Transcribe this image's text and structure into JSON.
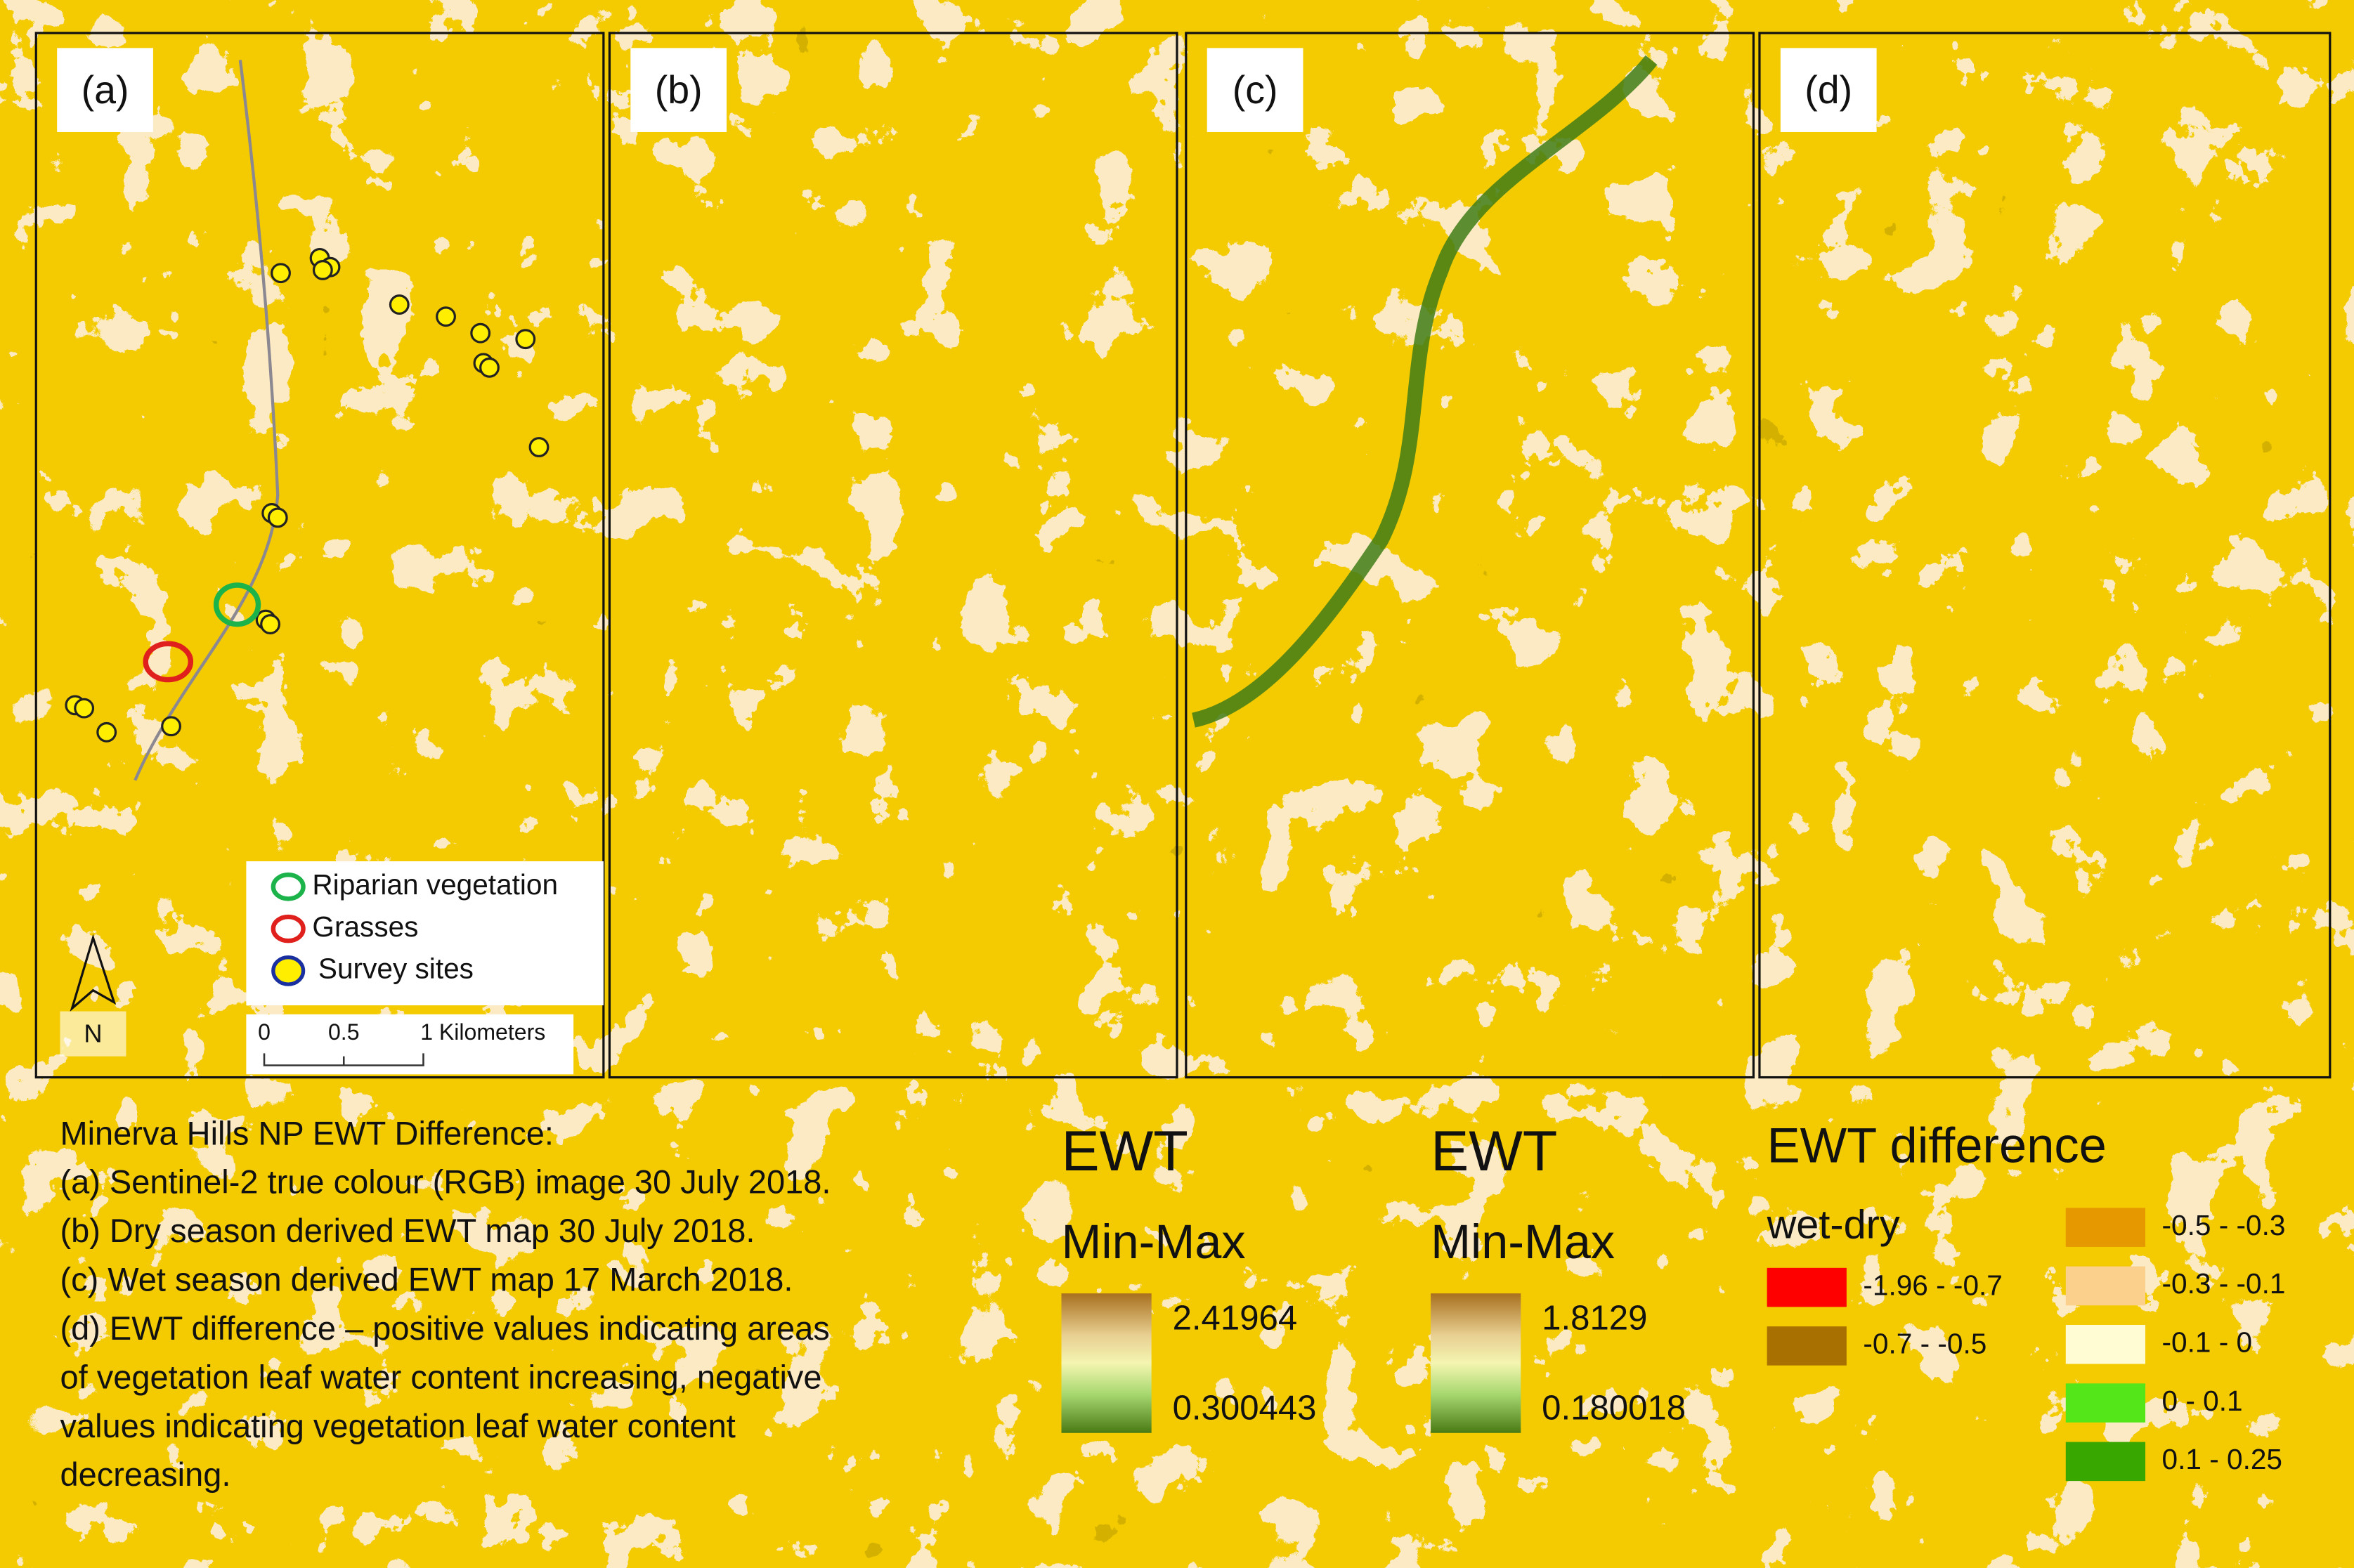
{
  "panels": [
    {
      "label": "(a)"
    },
    {
      "label": "(b)"
    },
    {
      "label": "(c)"
    },
    {
      "label": "(d)"
    }
  ],
  "map_legend": {
    "items": [
      "Riparian vegetation",
      "Grasses",
      "Survey sites"
    ],
    "north": "N",
    "scale_labels": [
      "0",
      "0.5",
      "1 Kilometers"
    ]
  },
  "caption": [
    "Minerva Hills NP EWT Difference:",
    "(a) Sentinel-2 true colour (RGB) image 30 July 2018.",
    "(b) Dry season derived EWT map 30 July 2018.",
    "(c) Wet season derived EWT map 17 March 2018.",
    "(d) EWT difference – positive values indicating areas",
    "of vegetation leaf water content increasing, negative",
    "values indicating vegetation leaf water content",
    "decreasing."
  ],
  "ewt_legends": [
    {
      "title": "EWT",
      "subtitle": "Min-Max",
      "max": "2.41964",
      "min": "0.300443"
    },
    {
      "title": "EWT",
      "subtitle": "Min-Max",
      "max": "1.8129",
      "min": "0.180018"
    }
  ],
  "difference_legend": {
    "title": "EWT difference",
    "subtitle": "wet-dry",
    "classes": [
      {
        "label": "-1.96 - -0.7",
        "color": "#ff0000"
      },
      {
        "label": "-0.7 - -0.5",
        "color": "#a87000"
      },
      {
        "label": "-0.5 - -0.3",
        "color": "#e69800"
      },
      {
        "label": "-0.3 - -0.1",
        "color": "#fad08c"
      },
      {
        "label": "-0.1 - 0",
        "color": "#fffbd2"
      },
      {
        "label": "0 - 0.1",
        "color": "#55e619"
      },
      {
        "label": "0.1 - 0.25",
        "color": "#38a800"
      }
    ]
  }
}
